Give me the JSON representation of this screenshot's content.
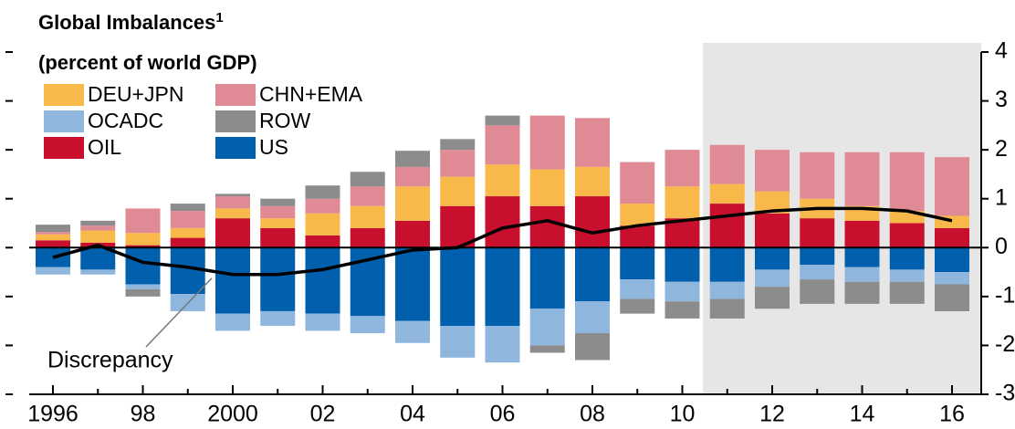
{
  "chart_data": {
    "type": "bar",
    "title": "Global Imbalances",
    "title_note": "1",
    "subtitle": "(percent of world GDP)",
    "annotation": "Discrepancy",
    "categories": [
      "1996",
      null,
      "98",
      null,
      "2000",
      null,
      "02",
      null,
      "04",
      null,
      "06",
      null,
      "08",
      null,
      "10",
      null,
      "12",
      null,
      "14",
      null,
      "16"
    ],
    "series": [
      {
        "name": "OIL",
        "color": "#c8102e",
        "values": [
          0.15,
          0.1,
          0.05,
          0.2,
          0.6,
          0.4,
          0.25,
          0.4,
          0.55,
          0.85,
          1.05,
          0.85,
          1.05,
          0.45,
          0.6,
          0.9,
          0.7,
          0.6,
          0.55,
          0.5,
          0.4
        ]
      },
      {
        "name": "DEU+JPN",
        "color": "#f9b94a",
        "values": [
          0.12,
          0.25,
          0.25,
          0.2,
          0.2,
          0.2,
          0.45,
          0.45,
          0.7,
          0.6,
          0.65,
          0.75,
          0.6,
          0.45,
          0.65,
          0.4,
          0.45,
          0.4,
          0.3,
          0.25,
          0.25
        ]
      },
      {
        "name": "CHN+EMA",
        "color": "#e08a96",
        "values": [
          0.05,
          0.1,
          0.5,
          0.35,
          0.25,
          0.25,
          0.3,
          0.4,
          0.4,
          0.55,
          0.8,
          1.1,
          1.0,
          0.85,
          0.75,
          0.8,
          0.85,
          0.95,
          1.1,
          1.2,
          1.2
        ]
      },
      {
        "name": "US",
        "color": "#0060ae",
        "values": [
          -0.4,
          -0.45,
          -0.75,
          -0.95,
          -1.35,
          -1.3,
          -1.35,
          -1.4,
          -1.5,
          -1.6,
          -1.6,
          -1.25,
          -1.1,
          -0.65,
          -0.7,
          -0.7,
          -0.45,
          -0.35,
          -0.4,
          -0.45,
          -0.5
        ]
      },
      {
        "name": "OCADC",
        "color": "#8fb6dd",
        "values": [
          -0.15,
          -0.1,
          -0.1,
          -0.35,
          -0.35,
          -0.3,
          -0.35,
          -0.35,
          -0.45,
          -0.65,
          -0.75,
          -0.75,
          -0.65,
          -0.4,
          -0.4,
          -0.35,
          -0.35,
          -0.3,
          -0.3,
          -0.25,
          -0.25
        ]
      },
      {
        "name": "ROW",
        "color": "#8c8c8c",
        "values": [
          0.15,
          0.1,
          -0.15,
          0.15,
          0.05,
          0.15,
          0.27,
          0.3,
          0.33,
          0.22,
          0.2,
          -0.15,
          -0.55,
          -0.3,
          -0.35,
          -0.4,
          -0.45,
          -0.5,
          -0.45,
          -0.45,
          -0.55
        ]
      }
    ],
    "line": {
      "name": "Discrepancy",
      "color": "#000000",
      "values": [
        -0.2,
        0.05,
        -0.3,
        -0.4,
        -0.55,
        -0.55,
        -0.45,
        -0.25,
        -0.05,
        0,
        0.4,
        0.55,
        0.3,
        0.45,
        0.55,
        0.65,
        0.75,
        0.8,
        0.8,
        0.75,
        0.55
      ]
    },
    "shaded_from": 15,
    "shade_color": "#e6e6e6",
    "ylim": [
      -3,
      4
    ],
    "yticks": [
      -3,
      -2,
      -1,
      0,
      1,
      2,
      3,
      4
    ],
    "axis_side": "right"
  }
}
